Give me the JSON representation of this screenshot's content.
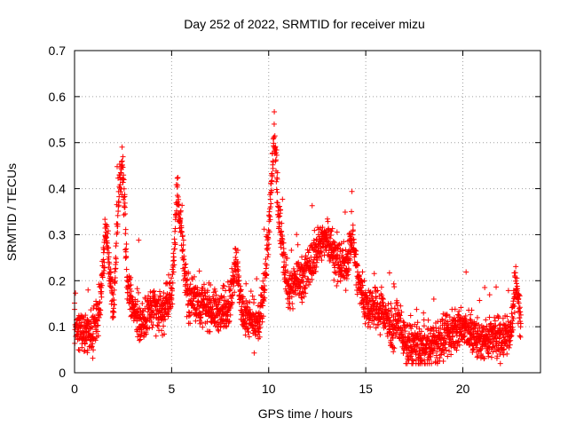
{
  "chart_data": {
    "type": "scatter",
    "title": "Day 252 of 2022, SRMTID for receiver mizu",
    "xlabel": "GPS time / hours",
    "ylabel": "SRMTID / TECUs",
    "xlim": [
      0,
      24
    ],
    "ylim": [
      0,
      0.7
    ],
    "x_ticks": [
      0,
      5,
      10,
      15,
      20
    ],
    "x_tick_labels": [
      "0",
      "5",
      "10",
      "15",
      "20"
    ],
    "y_ticks": [
      0,
      0.1,
      0.2,
      0.3,
      0.4,
      0.5,
      0.6,
      0.7
    ],
    "y_tick_labels": [
      "0",
      "0.1",
      "0.2",
      "0.3",
      "0.4",
      "0.5",
      "0.6",
      "0.7"
    ],
    "grid": true,
    "marker": "+",
    "color": "#ff0000",
    "series": [
      {
        "name": "mizu",
        "profile": [
          [
            0.0,
            0.1
          ],
          [
            0.5,
            0.09
          ],
          [
            1.0,
            0.09
          ],
          [
            1.2,
            0.12
          ],
          [
            1.4,
            0.2
          ],
          [
            1.6,
            0.32
          ],
          [
            1.8,
            0.22
          ],
          [
            2.0,
            0.14
          ],
          [
            2.3,
            0.4
          ],
          [
            2.5,
            0.45
          ],
          [
            2.7,
            0.2
          ],
          [
            3.0,
            0.14
          ],
          [
            3.5,
            0.11
          ],
          [
            4.0,
            0.14
          ],
          [
            4.5,
            0.13
          ],
          [
            5.0,
            0.17
          ],
          [
            5.3,
            0.4
          ],
          [
            5.5,
            0.3
          ],
          [
            5.8,
            0.17
          ],
          [
            6.5,
            0.15
          ],
          [
            7.0,
            0.14
          ],
          [
            7.5,
            0.13
          ],
          [
            8.0,
            0.15
          ],
          [
            8.3,
            0.25
          ],
          [
            8.6,
            0.14
          ],
          [
            9.0,
            0.11
          ],
          [
            9.5,
            0.1
          ],
          [
            9.8,
            0.2
          ],
          [
            10.0,
            0.3
          ],
          [
            10.3,
            0.52
          ],
          [
            10.5,
            0.35
          ],
          [
            10.8,
            0.25
          ],
          [
            11.0,
            0.18
          ],
          [
            11.5,
            0.2
          ],
          [
            12.0,
            0.22
          ],
          [
            12.5,
            0.27
          ],
          [
            13.0,
            0.3
          ],
          [
            13.5,
            0.24
          ],
          [
            14.0,
            0.23
          ],
          [
            14.3,
            0.3
          ],
          [
            14.6,
            0.2
          ],
          [
            15.0,
            0.15
          ],
          [
            15.5,
            0.14
          ],
          [
            16.0,
            0.13
          ],
          [
            16.3,
            0.09
          ],
          [
            16.8,
            0.11
          ],
          [
            17.0,
            0.06
          ],
          [
            17.5,
            0.06
          ],
          [
            18.0,
            0.05
          ],
          [
            18.5,
            0.06
          ],
          [
            19.0,
            0.07
          ],
          [
            19.5,
            0.09
          ],
          [
            20.0,
            0.1
          ],
          [
            20.5,
            0.08
          ],
          [
            21.0,
            0.07
          ],
          [
            21.5,
            0.08
          ],
          [
            22.0,
            0.08
          ],
          [
            22.5,
            0.09
          ],
          [
            22.7,
            0.2
          ],
          [
            23.0,
            0.11
          ]
        ],
        "point_density_per_hour": 130,
        "noise": 0.045,
        "spike_probability": 0.02,
        "spike_height": 0.12
      }
    ]
  }
}
